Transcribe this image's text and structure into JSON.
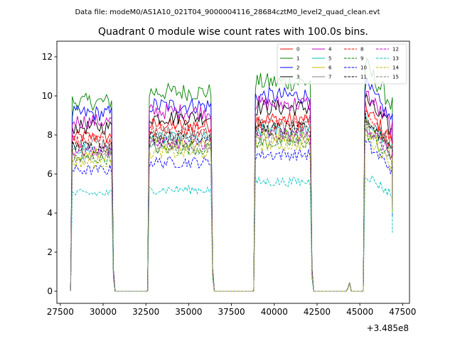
{
  "chart_data": {
    "type": "line",
    "suptitle": "Data file: modeM0/AS1A10_021T04_9000004116_28684cztM0_level2_quad_clean.evt",
    "title": "Quadrant 0 module wise count rates with 100.0s bins.",
    "xlabel": "",
    "ylabel": "",
    "offset_text": "+3.485e8",
    "xlim": [
      27300,
      47900
    ],
    "ylim": [
      -0.62,
      12.8
    ],
    "x_ticks": [
      27500,
      30000,
      32500,
      35000,
      37500,
      40000,
      42500,
      45000,
      47500
    ],
    "x_tick_labels": [
      "27500",
      "30000",
      "32500",
      "35000",
      "37500",
      "40000",
      "42500",
      "45000",
      "47500"
    ],
    "y_ticks": [
      0,
      2,
      4,
      6,
      8,
      10,
      12
    ],
    "y_tick_labels": [
      "0",
      "2",
      "4",
      "6",
      "8",
      "10",
      "12"
    ],
    "legend_position": "upper-right",
    "bin_seconds": 100,
    "segments": [
      {
        "start": 28200,
        "end": 30500,
        "gap_until": 32700
      },
      {
        "start": 32700,
        "end": 36300,
        "gap_until": 38900
      },
      {
        "start": 38900,
        "end": 42100,
        "gap_until": 45300
      },
      {
        "start": 45300,
        "end": 46900,
        "gap_until": null
      }
    ],
    "series": [
      {
        "name": "0",
        "color": "#ff0000",
        "style": "solid",
        "levels": [
          7.9,
          8.5,
          8.8,
          9.4
        ]
      },
      {
        "name": "1",
        "color": "#008000",
        "style": "solid",
        "levels": [
          9.7,
          10.2,
          10.7,
          11.6
        ]
      },
      {
        "name": "2",
        "color": "#0000ff",
        "style": "solid",
        "levels": [
          9.1,
          9.5,
          10.0,
          10.6
        ]
      },
      {
        "name": "3",
        "color": "#000000",
        "style": "solid",
        "levels": [
          8.4,
          8.9,
          9.4,
          9.9
        ]
      },
      {
        "name": "4",
        "color": "#bf00bf",
        "style": "solid",
        "levels": [
          8.7,
          9.2,
          9.6,
          10.2
        ]
      },
      {
        "name": "5",
        "color": "#00bfbf",
        "style": "solid",
        "levels": [
          7.3,
          7.8,
          8.2,
          8.8
        ]
      },
      {
        "name": "6",
        "color": "#bfbf00",
        "style": "solid",
        "levels": [
          7.0,
          7.6,
          8.0,
          8.6
        ]
      },
      {
        "name": "7",
        "color": "#808080",
        "style": "solid",
        "levels": [
          7.6,
          8.1,
          8.5,
          9.1
        ]
      },
      {
        "name": "8",
        "color": "#ff0000",
        "style": "dashed",
        "levels": [
          7.7,
          8.2,
          8.6,
          9.1
        ]
      },
      {
        "name": "9",
        "color": "#008000",
        "style": "dashed",
        "levels": [
          6.8,
          7.3,
          7.6,
          8.2
        ]
      },
      {
        "name": "10",
        "color": "#0000ff",
        "style": "dashed",
        "levels": [
          6.2,
          6.6,
          7.0,
          7.6
        ]
      },
      {
        "name": "11",
        "color": "#000000",
        "style": "dashed",
        "levels": [
          7.4,
          7.9,
          8.3,
          8.9
        ]
      },
      {
        "name": "12",
        "color": "#bf00bf",
        "style": "dashed",
        "levels": [
          7.2,
          7.6,
          8.0,
          8.5
        ]
      },
      {
        "name": "13",
        "color": "#00bfbf",
        "style": "dashed",
        "levels": [
          5.0,
          5.2,
          5.6,
          6.0
        ]
      },
      {
        "name": "14",
        "color": "#bfbf00",
        "style": "dashed",
        "levels": [
          6.6,
          7.1,
          7.5,
          8.0
        ]
      },
      {
        "name": "15",
        "color": "#808080",
        "style": "dashed",
        "levels": [
          6.9,
          7.4,
          7.8,
          8.4
        ]
      }
    ]
  }
}
